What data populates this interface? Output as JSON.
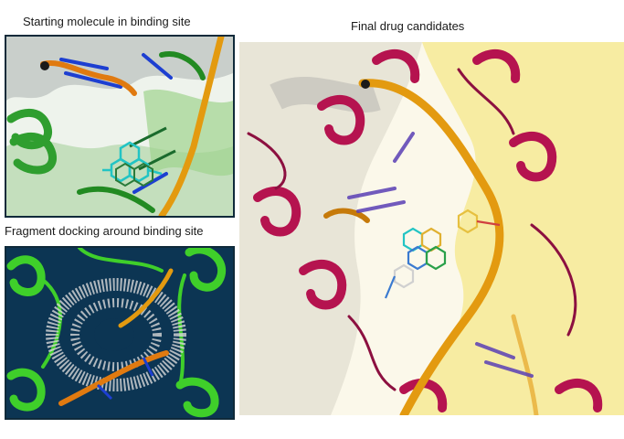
{
  "labels": {
    "starting": "Starting molecule in binding site",
    "docking": "Fragment docking around binding site",
    "final": "Final drug candidates"
  },
  "colors": {
    "protein_green": "#2f9e2f",
    "protein_bright_green": "#3fcf2a",
    "protein_crimson": "#b5134f",
    "dna_backbone": "#e39a10",
    "surface_yellow": "#f5e88a",
    "docking_background": "#0c3553",
    "ligand_cyan": "#22c4c4"
  },
  "panels": [
    {
      "id": "starting-molecule",
      "image": "protein-dna-complex-with-ligand"
    },
    {
      "id": "fragment-docking",
      "image": "fragment-cloud-around-dna"
    },
    {
      "id": "final-candidates",
      "image": "overlaid-drug-candidates"
    }
  ]
}
